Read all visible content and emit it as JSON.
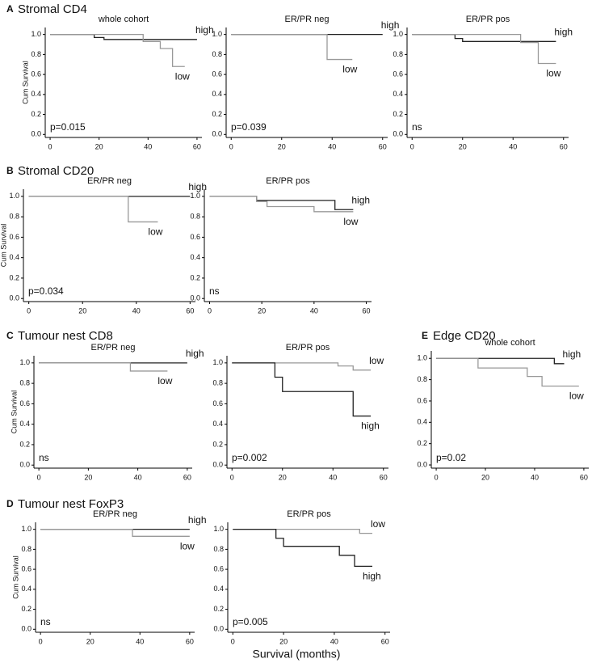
{
  "x_label": "Survival (months)",
  "chart_data": [
    {
      "type": "line",
      "panel": "A",
      "panel_title": "Stromal CD4",
      "ylabel": "Cum Survival",
      "title": "whole cohort",
      "annotation": "p=0.015",
      "xlim": [
        -2,
        62
      ],
      "xticks": [
        0,
        20,
        40,
        60
      ],
      "ylim": [
        -0.03,
        1.07
      ],
      "yticks": [
        {
          "value": 0,
          "label": "0.0"
        },
        0.2,
        0.4,
        0.6,
        0.8,
        {
          "value": 1,
          "label": "1.0"
        }
      ],
      "series": [
        {
          "name": "high",
          "color": "#222222",
          "x": [
            0,
            18,
            22,
            60
          ],
          "values": [
            1,
            0.97,
            0.95,
            0.95
          ]
        },
        {
          "name": "low",
          "color": "#999999",
          "x": [
            0,
            38,
            45,
            50,
            55
          ],
          "values": [
            1,
            0.93,
            0.86,
            0.68,
            0.68
          ]
        }
      ]
    },
    {
      "type": "line",
      "title": "ER/PR neg",
      "annotation": "p=0.039",
      "xlim": [
        -2,
        62
      ],
      "xticks": [
        0,
        20,
        40,
        60
      ],
      "ylim": [
        -0.03,
        1.07
      ],
      "yticks": [
        {
          "value": 0,
          "label": "0.0"
        },
        0.2,
        0.4,
        0.6,
        0.8,
        {
          "value": 1,
          "label": "1.0"
        }
      ],
      "series": [
        {
          "name": "high",
          "color": "#222222",
          "x": [
            0,
            60
          ],
          "values": [
            1,
            1
          ]
        },
        {
          "name": "low",
          "color": "#999999",
          "x": [
            0,
            38,
            48
          ],
          "values": [
            1,
            0.75,
            0.75
          ]
        }
      ]
    },
    {
      "type": "line",
      "title": "ER/PR pos",
      "annotation": "ns",
      "xlim": [
        -2,
        62
      ],
      "xticks": [
        0,
        20,
        40,
        60
      ],
      "ylim": [
        -0.03,
        1.07
      ],
      "yticks": [
        {
          "value": 0,
          "label": "0.0"
        },
        0.2,
        0.4,
        0.6,
        0.8,
        {
          "value": 1,
          "label": "1.0"
        }
      ],
      "series": [
        {
          "name": "high",
          "color": "#222222",
          "x": [
            0,
            17,
            20,
            57
          ],
          "values": [
            1,
            0.96,
            0.93,
            0.93
          ]
        },
        {
          "name": "low",
          "color": "#999999",
          "x": [
            0,
            43,
            50,
            57
          ],
          "values": [
            1,
            0.92,
            0.71,
            0.71
          ]
        }
      ]
    },
    {
      "type": "line",
      "panel": "B",
      "panel_title": "Stromal CD20",
      "ylabel": "Cum Survival",
      "title": "ER/PR neg",
      "annotation": "p=0.034",
      "xlim": [
        -2,
        62
      ],
      "xticks": [
        0,
        20,
        40,
        60
      ],
      "ylim": [
        -0.03,
        1.07
      ],
      "yticks": [
        {
          "value": 0,
          "label": "0.0"
        },
        0.2,
        0.4,
        0.6,
        0.8,
        {
          "value": 1,
          "label": "1.0"
        }
      ],
      "series": [
        {
          "name": "high",
          "color": "#222222",
          "x": [
            0,
            60
          ],
          "values": [
            1,
            1
          ]
        },
        {
          "name": "low",
          "color": "#999999",
          "x": [
            0,
            37,
            48
          ],
          "values": [
            1,
            0.75,
            0.75
          ]
        }
      ]
    },
    {
      "type": "line",
      "title": "ER/PR pos",
      "annotation": "ns",
      "xlim": [
        -2,
        62
      ],
      "xticks": [
        0,
        20,
        40,
        60
      ],
      "ylim": [
        -0.03,
        1.07
      ],
      "yticks": [
        {
          "value": 0,
          "label": "0.0"
        },
        0.2,
        0.4,
        0.6,
        0.8,
        {
          "value": 1,
          "label": "1.0"
        }
      ],
      "series": [
        {
          "name": "high",
          "color": "#222222",
          "x": [
            0,
            18,
            48,
            55
          ],
          "values": [
            1,
            0.96,
            0.87,
            0.87
          ]
        },
        {
          "name": "low",
          "color": "#999999",
          "x": [
            0,
            18,
            22,
            40,
            55
          ],
          "values": [
            1,
            0.95,
            0.9,
            0.85,
            0.85
          ]
        }
      ]
    },
    {
      "type": "line",
      "panel": "C",
      "panel_title": "Tumour nest CD8",
      "ylabel": "Cum Survival",
      "title": "ER/PR neg",
      "annotation": "ns",
      "xlim": [
        -2,
        62
      ],
      "xticks": [
        0,
        20,
        40,
        60
      ],
      "ylim": [
        -0.03,
        1.07
      ],
      "yticks": [
        {
          "value": 0,
          "label": "0.0"
        },
        0.2,
        0.4,
        0.6,
        0.8,
        {
          "value": 1,
          "label": "1.0"
        }
      ],
      "series": [
        {
          "name": "high",
          "color": "#222222",
          "x": [
            0,
            60
          ],
          "values": [
            1,
            1
          ]
        },
        {
          "name": "low",
          "color": "#999999",
          "x": [
            0,
            37,
            52
          ],
          "values": [
            1,
            0.92,
            0.92
          ]
        }
      ]
    },
    {
      "type": "line",
      "title": "ER/PR pos",
      "annotation": "p=0.002",
      "xlim": [
        -2,
        62
      ],
      "xticks": [
        0,
        20,
        40,
        60
      ],
      "ylim": [
        -0.03,
        1.07
      ],
      "yticks": [
        {
          "value": 0,
          "label": "0.0"
        },
        0.2,
        0.4,
        0.6,
        0.8,
        {
          "value": 1,
          "label": "1.0"
        }
      ],
      "series": [
        {
          "name": "low",
          "color": "#999999",
          "x": [
            0,
            42,
            48,
            55
          ],
          "values": [
            1,
            0.97,
            0.93,
            0.93
          ]
        },
        {
          "name": "high",
          "color": "#222222",
          "x": [
            0,
            17,
            20,
            48,
            55
          ],
          "values": [
            1,
            0.86,
            0.72,
            0.48,
            0.48
          ]
        }
      ]
    },
    {
      "type": "line",
      "panel": "E",
      "panel_title": "Edge CD20",
      "title": "whole cohort",
      "annotation": "p=0.02",
      "xlim": [
        -2,
        62
      ],
      "xticks": [
        0,
        20,
        40,
        60
      ],
      "ylim": [
        -0.03,
        1.07
      ],
      "yticks": [
        {
          "value": 0,
          "label": "0.0"
        },
        0.2,
        0.4,
        0.6,
        0.8,
        {
          "value": 1,
          "label": "1.0"
        }
      ],
      "series": [
        {
          "name": "high",
          "color": "#222222",
          "x": [
            0,
            48,
            52
          ],
          "values": [
            1,
            0.95,
            0.95
          ]
        },
        {
          "name": "low",
          "color": "#999999",
          "x": [
            0,
            17,
            37,
            43,
            58
          ],
          "values": [
            1,
            0.91,
            0.83,
            0.74,
            0.74
          ]
        }
      ]
    },
    {
      "type": "line",
      "panel": "D",
      "panel_title": "Tumour nest FoxP3",
      "ylabel": "Cum Survival",
      "title": "ER/PR neg",
      "annotation": "ns",
      "xlim": [
        -2,
        62
      ],
      "xticks": [
        0,
        20,
        40,
        60
      ],
      "ylim": [
        -0.03,
        1.07
      ],
      "yticks": [
        {
          "value": 0,
          "label": "0.0"
        },
        0.2,
        0.4,
        0.6,
        0.8,
        {
          "value": 1,
          "label": "1.0"
        }
      ],
      "series": [
        {
          "name": "high",
          "color": "#222222",
          "x": [
            0,
            60
          ],
          "values": [
            1,
            1
          ]
        },
        {
          "name": "low",
          "color": "#999999",
          "x": [
            0,
            37,
            60
          ],
          "values": [
            1,
            0.93,
            0.93
          ]
        }
      ]
    },
    {
      "type": "line",
      "title": "ER/PR pos",
      "annotation": "p=0.005",
      "xlim": [
        -2,
        62
      ],
      "xticks": [
        0,
        20,
        40,
        60
      ],
      "ylim": [
        -0.03,
        1.07
      ],
      "yticks": [
        {
          "value": 0,
          "label": "0.0"
        },
        0.2,
        0.4,
        0.6,
        0.8,
        {
          "value": 1,
          "label": "1.0"
        }
      ],
      "series": [
        {
          "name": "low",
          "color": "#999999",
          "x": [
            0,
            50,
            55
          ],
          "values": [
            1,
            0.96,
            0.96
          ]
        },
        {
          "name": "high",
          "color": "#222222",
          "x": [
            0,
            17,
            20,
            42,
            48,
            55
          ],
          "values": [
            1,
            0.91,
            0.83,
            0.74,
            0.63,
            0.63
          ]
        }
      ]
    }
  ]
}
